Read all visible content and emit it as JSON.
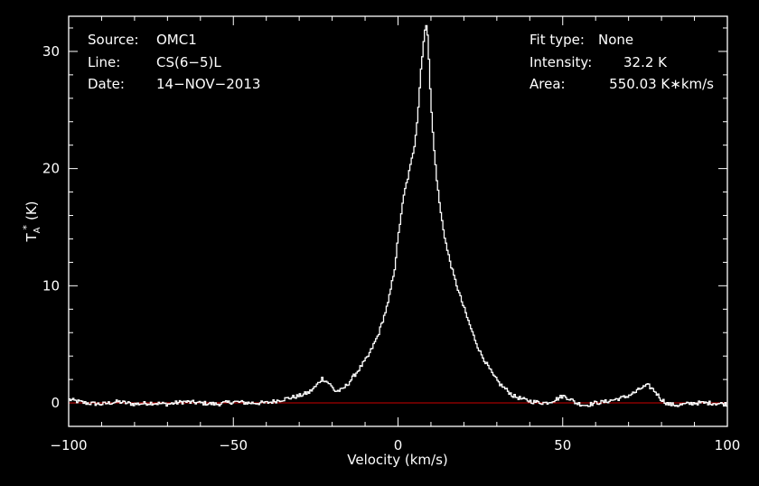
{
  "colors": {
    "background": "#000000",
    "axes": "#ffffff",
    "spectrum": "#ffffff",
    "baseline": "#cc0000"
  },
  "header_left": [
    {
      "label": "Source:",
      "value": "OMC1"
    },
    {
      "label": "Line:",
      "value": "CS(6−5)L"
    },
    {
      "label": "Date:",
      "value": "14−NOV−2013"
    }
  ],
  "header_right": [
    {
      "label": "Fit type:",
      "value": "None"
    },
    {
      "label": "Intensity:",
      "value": "32.2 K"
    },
    {
      "label": "Area:",
      "value": "550.03 K∗km/s"
    }
  ],
  "chart_data": {
    "type": "line",
    "xlabel": "Velocity (km/s)",
    "ylabel_main": "T",
    "ylabel_sub": "A",
    "ylabel_sup": "*",
    "ylabel_unit": "(K)",
    "xlim": [
      -100,
      100
    ],
    "ylim": [
      -2,
      33
    ],
    "xticks": [
      -100,
      -50,
      0,
      50,
      100
    ],
    "xtick_labels": [
      "−100",
      "−50",
      "0",
      "50",
      "100"
    ],
    "yticks": [
      0,
      10,
      20,
      30
    ],
    "ytick_labels": [
      "0",
      "10",
      "20",
      "30"
    ],
    "baseline_y": 0,
    "series": [
      {
        "x": [
          -100,
          -95,
          -90,
          -85,
          -80,
          -75,
          -70,
          -65,
          -60,
          -55,
          -50,
          -45,
          -40,
          -35,
          -30,
          -27,
          -25,
          -23,
          -21,
          -19,
          -17,
          -15,
          -12,
          -9,
          -6,
          -3,
          -1,
          0,
          1,
          2,
          3,
          4,
          5,
          6,
          7,
          8,
          8.5,
          9,
          9.5,
          10,
          11,
          12,
          13,
          14,
          15,
          17,
          19,
          21,
          23,
          25,
          27,
          29,
          31,
          33,
          35,
          38,
          41,
          45,
          48,
          50,
          52,
          54,
          57,
          60,
          63,
          66,
          69,
          72,
          74,
          76,
          78,
          80,
          82,
          85,
          90,
          95,
          100
        ],
        "y": [
          0.3,
          0.0,
          -0.1,
          0.1,
          -0.1,
          0.0,
          -0.1,
          0.1,
          0.0,
          -0.1,
          0.1,
          0.0,
          0.0,
          0.3,
          0.6,
          0.9,
          1.4,
          2.1,
          1.7,
          1.0,
          1.1,
          1.7,
          2.8,
          4.0,
          5.8,
          8.5,
          11.5,
          14,
          16.2,
          18,
          19.2,
          20.5,
          22,
          24.5,
          28.5,
          31.5,
          32.2,
          31.5,
          29,
          25.5,
          21.5,
          18.5,
          16.2,
          14.5,
          13,
          10.8,
          9.0,
          7.3,
          5.7,
          4.3,
          3.3,
          2.3,
          1.6,
          1.1,
          0.6,
          0.3,
          0.1,
          0.0,
          0.3,
          0.6,
          0.4,
          0.0,
          -0.2,
          0.0,
          0.1,
          0.3,
          0.5,
          0.9,
          1.3,
          1.5,
          1.0,
          0.3,
          -0.1,
          -0.2,
          0.0,
          0.0,
          -0.1
        ]
      }
    ]
  }
}
